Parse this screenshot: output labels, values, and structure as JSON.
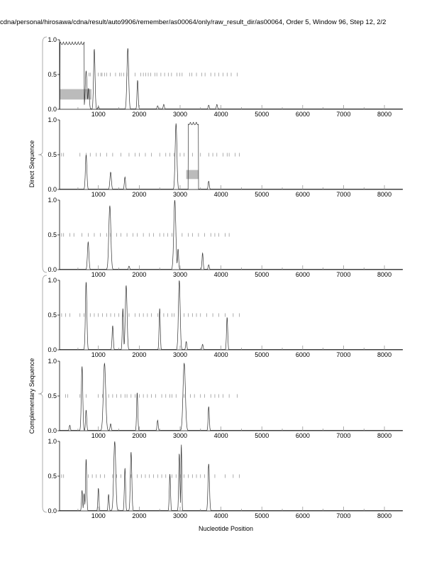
{
  "chart_data": {
    "type": "line",
    "title": "cdna/personal/hirosawa/cdna/result/auto9906/remember/as00064/only/raw_result_dir/as00064, Order 5, Window 96, Step 12, 2/2",
    "xlabel": "Nucleotide Position",
    "xlim": [
      50,
      8450
    ],
    "ylim": [
      0,
      1
    ],
    "xticks": [
      1000,
      2000,
      3000,
      4000,
      5000,
      6000,
      7000,
      8000
    ],
    "yticks": [
      "0.0",
      "0.5",
      "1.0"
    ],
    "groups": [
      {
        "label": "Direct Sequence",
        "panels": [
          0,
          1,
          2
        ]
      },
      {
        "label": "Complementary Sequence",
        "panels": [
          3,
          4,
          5
        ]
      }
    ],
    "panels": [
      {
        "plateau": [
          60,
          650,
          0.97
        ],
        "peaks": [
          [
            700,
            0.55,
            30
          ],
          [
            760,
            0.3,
            25
          ],
          [
            900,
            0.87,
            25
          ],
          [
            1000,
            0.04,
            20
          ],
          [
            1720,
            0.88,
            30
          ],
          [
            1960,
            0.42,
            20
          ],
          [
            2450,
            0.05,
            20
          ],
          [
            2600,
            0.07,
            20
          ],
          [
            3700,
            0.06,
            20
          ],
          [
            3900,
            0.07,
            20
          ]
        ],
        "boxes": [
          [
            60,
            830,
            0.14,
            0.29
          ]
        ],
        "marks": [
          770,
          800,
          1000,
          1060,
          1090,
          1150,
          1200,
          1290,
          1420,
          1520,
          1560,
          1620,
          1700,
          1900,
          2040,
          2100,
          2160,
          2220,
          2280,
          2380,
          2430,
          2530,
          2620,
          2710,
          2790,
          2920,
          2990,
          3050,
          3230,
          3290,
          3400,
          3530,
          3610,
          3750,
          3850,
          3950,
          4050,
          4150,
          4250,
          4400
        ]
      },
      {
        "plateau": [
          3200,
          3450,
          0.97
        ],
        "peaks": [
          [
            700,
            0.5,
            25
          ],
          [
            1300,
            0.25,
            25
          ],
          [
            1650,
            0.18,
            20
          ],
          [
            2900,
            0.95,
            30
          ],
          [
            3700,
            0.12,
            20
          ]
        ],
        "boxes": [
          [
            3150,
            3450,
            0.15,
            0.28
          ]
        ],
        "marks": [
          100,
          150,
          550,
          700,
          800,
          950,
          1050,
          1200,
          1350,
          1550,
          1750,
          1900,
          2000,
          2150,
          2300,
          2500,
          2650,
          2750,
          2850,
          3000,
          3100,
          3300,
          3500,
          3700,
          3800,
          3900,
          4050,
          4150,
          4200,
          4350,
          4450
        ]
      },
      {
        "plateau": null,
        "peaks": [
          [
            750,
            0.4,
            25
          ],
          [
            1280,
            0.92,
            35
          ],
          [
            1750,
            0.05,
            20
          ],
          [
            2870,
            1.0,
            35
          ],
          [
            2950,
            0.3,
            20
          ],
          [
            3550,
            0.24,
            20
          ],
          [
            3700,
            0.07,
            20
          ]
        ],
        "boxes": [],
        "marks": [
          100,
          150,
          300,
          400,
          600,
          750,
          900,
          1050,
          1200,
          1300,
          1450,
          1550,
          1700,
          1850,
          1950,
          2100,
          2250,
          2350,
          2500,
          2600,
          2700,
          2800,
          2900,
          3050,
          3200,
          3300,
          3450,
          3600,
          3750,
          3850,
          3950,
          4100,
          4200
        ]
      },
      {
        "plateau": null,
        "peaks": [
          [
            700,
            0.98,
            25
          ],
          [
            1350,
            0.35,
            20
          ],
          [
            1600,
            0.6,
            20
          ],
          [
            1680,
            0.93,
            30
          ],
          [
            2500,
            0.6,
            20
          ],
          [
            2980,
            1.0,
            30
          ],
          [
            3150,
            0.12,
            20
          ],
          [
            3550,
            0.08,
            20
          ],
          [
            4150,
            0.47,
            20
          ]
        ],
        "boxes": [],
        "marks": [
          100,
          200,
          300,
          550,
          650,
          800,
          900,
          1000,
          1100,
          1200,
          1300,
          1400,
          1500,
          1600,
          1750,
          1900,
          2000,
          2100,
          2200,
          2300,
          2450,
          2600,
          2700,
          2800,
          2850,
          3100,
          3200,
          3300,
          3400,
          3500,
          3650,
          3800,
          3950,
          4100,
          4300,
          4450
        ]
      },
      {
        "plateau": null,
        "peaks": [
          [
            300,
            0.08,
            20
          ],
          [
            600,
            0.93,
            25
          ],
          [
            700,
            0.3,
            20
          ],
          [
            1150,
            0.97,
            40
          ],
          [
            1300,
            0.1,
            20
          ],
          [
            1950,
            0.55,
            20
          ],
          [
            2450,
            0.15,
            20
          ],
          [
            3100,
            0.97,
            40
          ],
          [
            3700,
            0.35,
            20
          ]
        ],
        "boxes": [],
        "marks": [
          200,
          250,
          550,
          700,
          1000,
          1100,
          1250,
          1350,
          1450,
          1550,
          1650,
          1700,
          1800,
          1900,
          2000,
          2100,
          2200,
          2300,
          2400,
          2550,
          2650,
          2750,
          2800,
          2900,
          3100,
          3250,
          3350,
          3500,
          3600,
          3750,
          3850,
          3950,
          4050,
          4200,
          4400
        ]
      },
      {
        "plateau": null,
        "peaks": [
          [
            600,
            0.3,
            18
          ],
          [
            650,
            0.25,
            18
          ],
          [
            700,
            0.75,
            20
          ],
          [
            1000,
            0.33,
            18
          ],
          [
            1250,
            0.24,
            18
          ],
          [
            1400,
            1.0,
            35
          ],
          [
            1650,
            0.62,
            20
          ],
          [
            1800,
            0.85,
            25
          ],
          [
            2750,
            0.53,
            20
          ],
          [
            2980,
            0.83,
            20
          ],
          [
            3030,
            0.97,
            15
          ],
          [
            3700,
            0.68,
            25
          ]
        ],
        "boxes": [],
        "marks": [
          100,
          150,
          750,
          850,
          950,
          1050,
          1150,
          1350,
          1450,
          1550,
          1800,
          1950,
          2050,
          2150,
          2250,
          2350,
          2450,
          2550,
          2650,
          2750,
          2800,
          2900,
          3000,
          3100,
          3200,
          3300,
          3400,
          3500,
          3600,
          3850,
          4100,
          4300,
          4450
        ]
      }
    ]
  }
}
